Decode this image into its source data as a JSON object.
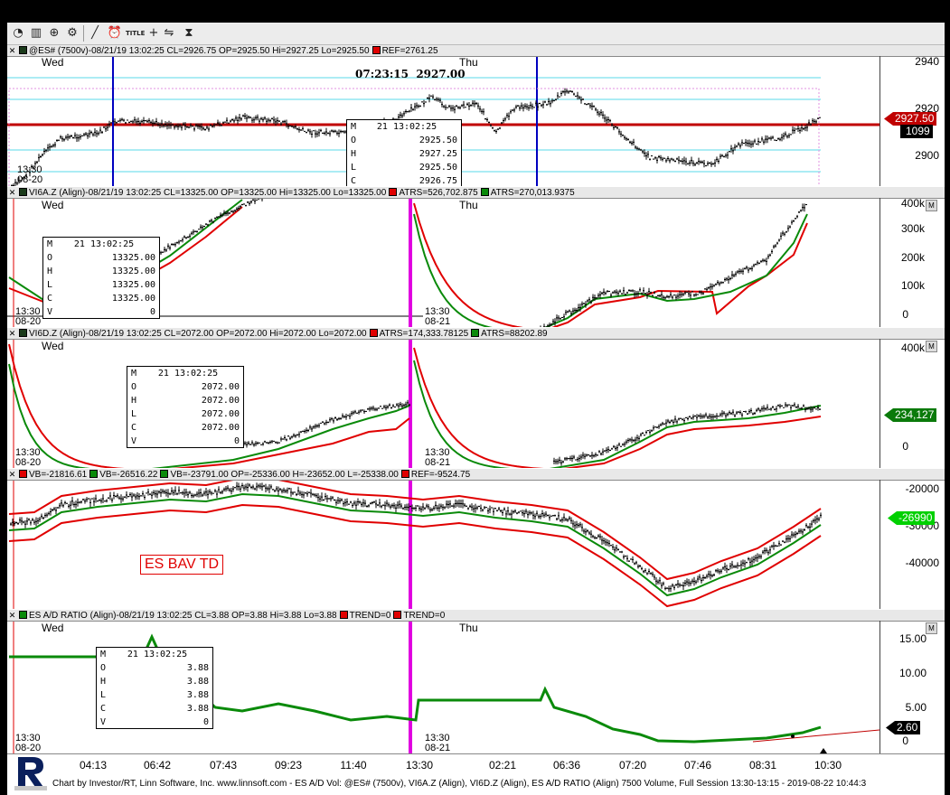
{
  "toolbar": {
    "icons": [
      "pie-chart-icon",
      "candlestick-icon",
      "zoom-icon",
      "gear-icon",
      "draw-line-icon",
      "alarm-clock-icon",
      "title-icon",
      "crosshair-icon",
      "template-icon",
      "hourglass-icon"
    ],
    "title_label": "TITLE"
  },
  "pane1": {
    "header": {
      "symbol": "@ES# (7500v)-08/21/19 13:02:25 CL=2926.75 OP=2925.50 Hi=2927.25 Lo=2925.50",
      "ref": "REF=2761.25"
    },
    "day_left": "Wed",
    "day_right": "Thu",
    "time_start": "13:30",
    "date_start": "08-20",
    "cursor_label": "07:23:15  2927.00",
    "ohlc": {
      "m": "M",
      "time": "21 13:02:25",
      "rows": [
        [
          "O",
          "2925.50"
        ],
        [
          "H",
          "2927.25"
        ],
        [
          "L",
          "2925.50"
        ],
        [
          "C",
          "2926.75"
        ]
      ]
    },
    "y_ticks": [
      "2940",
      "2920",
      "2900"
    ],
    "price_tag": "2927.50",
    "volume_tag": "1099",
    "colors": {
      "ref_line": "#c00000",
      "magenta": "#e000e0",
      "cyan": "#5ad8e8",
      "blue": "#0000c0"
    }
  },
  "pane2": {
    "header": {
      "symbol": "VI6A.Z (Align)-08/21/19 13:02:25 CL=13325.00 OP=13325.00 Hi=13325.00 Lo=13325.00",
      "atrs1": "ATRS=526,702.875",
      "atrs2": "ATRS=270,013.9375"
    },
    "day_left": "Wed",
    "day_right": "Thu",
    "time_left": "13:30",
    "date_left": "08-20",
    "time_right": "13:30",
    "date_right": "08-21",
    "ohlc": {
      "m": "M",
      "time": "21 13:02:25",
      "rows": [
        [
          "O",
          "13325.00"
        ],
        [
          "H",
          "13325.00"
        ],
        [
          "L",
          "13325.00"
        ],
        [
          "C",
          "13325.00"
        ],
        [
          "V",
          "0"
        ]
      ]
    },
    "y_ticks": [
      "400k",
      "300k",
      "200k",
      "100k",
      "0"
    ]
  },
  "pane3": {
    "header": {
      "symbol": "VI6D.Z (Align)-08/21/19 13:02:25 CL=2072.00 OP=2072.00 Hi=2072.00 Lo=2072.00",
      "atrs1": "ATRS=174,333.78125",
      "atrs2": "ATRS=88202.89"
    },
    "day_left": "Wed",
    "time_left": "13:30",
    "date_left": "08-20",
    "time_right": "13:30",
    "date_right": "08-21",
    "ohlc": {
      "m": "M",
      "time": "21 13:02:25",
      "rows": [
        [
          "O",
          "2072.00"
        ],
        [
          "H",
          "2072.00"
        ],
        [
          "L",
          "2072.00"
        ],
        [
          "C",
          "2072.00"
        ],
        [
          "V",
          "0"
        ]
      ]
    },
    "y_ticks": [
      "400k",
      "0"
    ],
    "price_tag": "234,127"
  },
  "pane4": {
    "header": {
      "vb1": "VB=-21816.61",
      "vb2": "VB=-26516.22",
      "vb3": "VB=-23791.00 OP=-25336.00 H=-23652.00 L=-25338.00",
      "ref": "REF=-9524.75"
    },
    "label": "ES BAV TD",
    "y_ticks": [
      "-20000",
      "-30000",
      "-40000"
    ],
    "price_tag": "-26990"
  },
  "pane5": {
    "header": {
      "symbol": "ES A/D RATIO (Align)-08/21/19 13:02:25 CL=3.88 OP=3.88 Hi=3.88 Lo=3.88",
      "trend1": "TREND=0",
      "trend2": "TREND=0"
    },
    "day_left": "Wed",
    "day_right": "Thu",
    "time_left": "13:30",
    "date_left": "08-20",
    "time_right": "13:30",
    "date_right": "08-21",
    "ohlc": {
      "m": "M",
      "time": "21 13:02:25",
      "rows": [
        [
          "O",
          "3.88"
        ],
        [
          "H",
          "3.88"
        ],
        [
          "L",
          "3.88"
        ],
        [
          "C",
          "3.88"
        ],
        [
          "V",
          "0"
        ]
      ]
    },
    "y_ticks": [
      "15.00",
      "10.00",
      "5.00",
      "0"
    ],
    "price_tag": "2.60"
  },
  "time_axis": [
    "04:13",
    "06:42",
    "07:43",
    "09:23",
    "11:40",
    "13:30",
    "02:21",
    "06:36",
    "07:20",
    "07:46",
    "08:31",
    "10:30"
  ],
  "footer": "Chart by Investor/RT, Linn Software, Inc. www.linnsoft.com - ES A/D Vol: @ES# (7500v), VI6A.Z (Align), VI6D.Z (Align), ES A/D RATIO (Align) 7500 Volume, Full Session 13:30-13:15 - 2019-08-22 10:44:3"
}
